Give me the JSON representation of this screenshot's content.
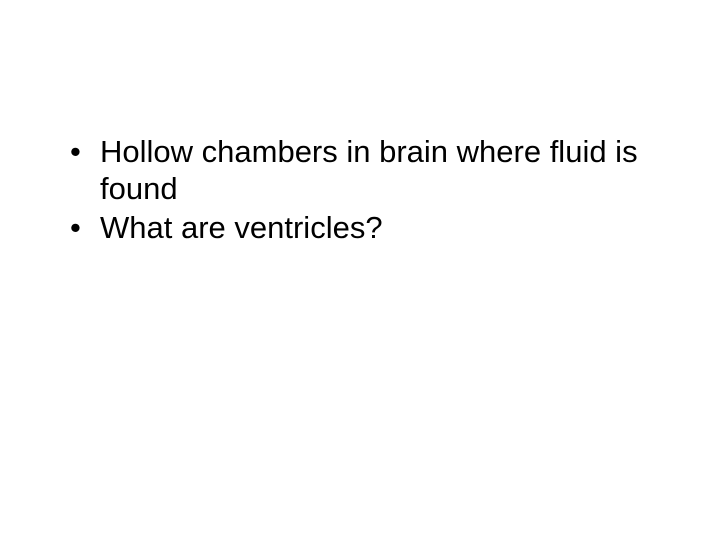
{
  "slide": {
    "background_color": "#ffffff",
    "text_color": "#000000",
    "font_size": 31,
    "font_family": "Arial",
    "bullets": [
      "Hollow chambers in brain where fluid is found",
      "What are ventricles?"
    ]
  }
}
